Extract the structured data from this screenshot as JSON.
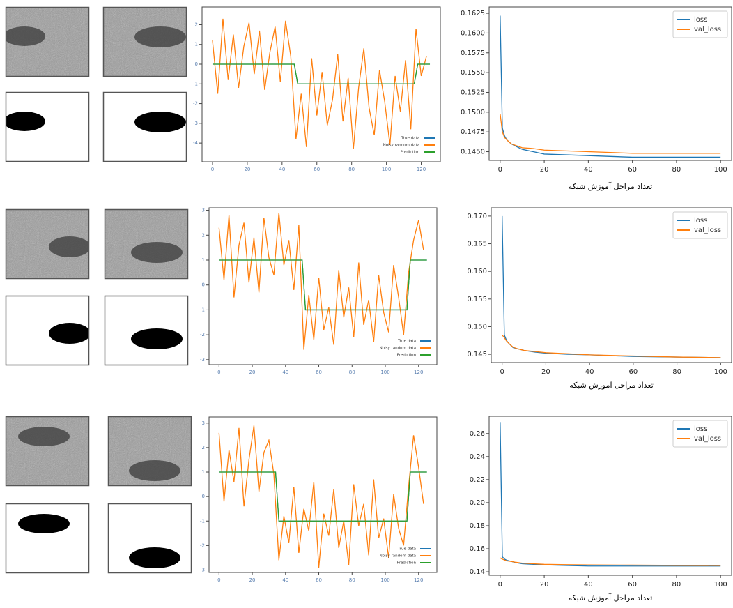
{
  "chart_data": [
    {
      "type": "line",
      "legend": "lower right",
      "xlim": [
        -6,
        131
      ],
      "ylim": [
        -4.95,
        2.9
      ],
      "xticks": [
        0,
        20,
        40,
        60,
        80,
        100,
        120
      ],
      "yticks": [
        2,
        1,
        0,
        -1,
        -2,
        -3,
        -4
      ],
      "series": [
        {
          "name": "True data",
          "color": "#1f77b4",
          "x": [
            0,
            47,
            49,
            116,
            118,
            125
          ],
          "values": [
            0,
            0,
            -1,
            -1,
            0,
            0
          ]
        },
        {
          "name": "Noisy random data",
          "color": "#ff7f0e",
          "x": [
            0,
            3,
            6,
            9,
            12,
            15,
            18,
            21,
            24,
            27,
            30,
            33,
            36,
            39,
            42,
            45,
            48,
            51,
            54,
            57,
            60,
            63,
            66,
            69,
            72,
            75,
            78,
            81,
            84,
            87,
            90,
            93,
            96,
            99,
            102,
            105,
            108,
            111,
            114,
            117,
            120,
            123
          ],
          "values": [
            1.2,
            -1.5,
            2.3,
            -0.8,
            1.5,
            -1.2,
            0.9,
            2.1,
            -0.5,
            1.7,
            -1.3,
            0.6,
            1.9,
            -0.9,
            2.2,
            0.4,
            -3.8,
            -1.5,
            -4.2,
            0.3,
            -2.6,
            -0.4,
            -3.1,
            -1.8,
            0.5,
            -2.9,
            -0.7,
            -4.3,
            -1.2,
            0.8,
            -2.2,
            -3.6,
            -0.3,
            -1.9,
            -4.1,
            -0.6,
            -2.4,
            0.2,
            -3.3,
            1.8,
            -0.6,
            0.4
          ]
        },
        {
          "name": "Prediction",
          "color": "#2ca02c",
          "x": [
            0,
            47,
            49,
            116,
            118,
            125
          ],
          "values": [
            0,
            0,
            -1,
            -1,
            0,
            0
          ]
        }
      ]
    },
    {
      "type": "line",
      "legend": "upper right",
      "x_label": "تعداد مراحل آموزش شبکه",
      "xlim": [
        -5,
        105
      ],
      "ylim": [
        0.1439,
        0.1633
      ],
      "xticks": [
        0,
        20,
        40,
        60,
        80,
        100
      ],
      "yticks": [
        {
          "value": 0.145,
          "label": "0.1450"
        },
        0.1475,
        {
          "value": 0.15,
          "label": "0.1500"
        },
        0.1525,
        {
          "value": 0.155,
          "label": "0.1550"
        },
        0.1575,
        {
          "value": 0.16,
          "label": "0.1600"
        },
        0.1625
      ],
      "x": [
        0,
        1,
        2,
        3,
        5,
        7,
        10,
        15,
        20,
        30,
        40,
        60,
        80,
        100
      ],
      "series": [
        {
          "name": "loss",
          "color": "#1f77b4",
          "values": [
            0.1622,
            0.148,
            0.147,
            0.1465,
            0.146,
            0.1457,
            0.1453,
            0.145,
            0.1447,
            0.1446,
            0.1445,
            0.1443,
            0.1443,
            0.1443
          ]
        },
        {
          "name": "val_loss",
          "color": "#ff7f0e",
          "values": [
            0.1498,
            0.1475,
            0.1468,
            0.1465,
            0.146,
            0.1458,
            0.1455,
            0.1454,
            0.1452,
            0.1451,
            0.145,
            0.1448,
            0.1448,
            0.1448
          ]
        }
      ]
    },
    {
      "type": "line",
      "legend": "lower right",
      "xlim": [
        -6,
        131
      ],
      "ylim": [
        -3.2,
        3.1
      ],
      "xticks": [
        0,
        20,
        40,
        60,
        80,
        100,
        120
      ],
      "yticks": [
        3,
        2,
        1,
        0,
        -1,
        -2,
        -3
      ],
      "series": [
        {
          "name": "True data",
          "color": "#1f77b4",
          "x": [
            0,
            50,
            52,
            113,
            115,
            125
          ],
          "values": [
            1,
            1,
            -1,
            -1,
            1,
            1
          ]
        },
        {
          "name": "Noisy random data",
          "color": "#ff7f0e",
          "x": [
            0,
            3,
            6,
            9,
            12,
            15,
            18,
            21,
            24,
            27,
            30,
            33,
            36,
            39,
            42,
            45,
            48,
            51,
            54,
            57,
            60,
            63,
            66,
            69,
            72,
            75,
            78,
            81,
            84,
            87,
            90,
            93,
            96,
            99,
            102,
            105,
            108,
            111,
            114,
            117,
            120,
            123
          ],
          "values": [
            2.3,
            0.2,
            2.8,
            -0.5,
            1.6,
            2.5,
            0.1,
            1.9,
            -0.3,
            2.7,
            1.1,
            0.4,
            2.9,
            0.8,
            1.8,
            -0.2,
            2.4,
            -2.6,
            -0.4,
            -2.2,
            0.3,
            -1.8,
            -0.9,
            -2.4,
            0.6,
            -1.3,
            -0.1,
            -2.1,
            0.9,
            -1.6,
            -0.6,
            -2.3,
            0.4,
            -1.1,
            -1.9,
            0.8,
            -0.5,
            -2.0,
            0.5,
            1.8,
            2.6,
            1.4
          ]
        },
        {
          "name": "Prediction",
          "color": "#2ca02c",
          "x": [
            0,
            50,
            52,
            113,
            115,
            125
          ],
          "values": [
            1,
            1,
            -1,
            -1,
            1,
            1
          ]
        }
      ]
    },
    {
      "type": "line",
      "legend": "upper right",
      "x_label": "تعداد مراحل آموزش شبکه",
      "xlim": [
        -5,
        105
      ],
      "ylim": [
        0.1435,
        0.1715
      ],
      "xticks": [
        0,
        20,
        40,
        60,
        80,
        100
      ],
      "yticks": [
        0.145,
        {
          "value": 0.15,
          "label": "0.150"
        },
        0.155,
        {
          "value": 0.16,
          "label": "0.160"
        },
        0.165,
        {
          "value": 0.17,
          "label": "0.170"
        }
      ],
      "x": [
        0,
        1,
        2,
        3,
        5,
        7,
        10,
        15,
        20,
        30,
        40,
        60,
        80,
        100
      ],
      "series": [
        {
          "name": "loss",
          "color": "#1f77b4",
          "values": [
            0.17,
            0.1485,
            0.1475,
            0.147,
            0.1462,
            0.146,
            0.1457,
            0.1454,
            0.1452,
            0.145,
            0.1449,
            0.1446,
            0.1445,
            0.1444
          ]
        },
        {
          "name": "val_loss",
          "color": "#ff7f0e",
          "values": [
            0.1485,
            0.148,
            0.1474,
            0.147,
            0.1463,
            0.146,
            0.1457,
            0.1455,
            0.1453,
            0.1451,
            0.1449,
            0.1447,
            0.1445,
            0.1444
          ]
        }
      ]
    },
    {
      "type": "line",
      "legend": "lower right",
      "xlim": [
        -6,
        131
      ],
      "ylim": [
        -3.1,
        3.25
      ],
      "xticks": [
        0,
        20,
        40,
        60,
        80,
        100,
        120
      ],
      "yticks": [
        3,
        2,
        1,
        0,
        -1,
        -2,
        -3
      ],
      "series": [
        {
          "name": "True data",
          "color": "#1f77b4",
          "x": [
            0,
            34,
            36,
            113,
            115,
            125
          ],
          "values": [
            1,
            1,
            -1,
            -1,
            1,
            1
          ]
        },
        {
          "name": "Noisy random data",
          "color": "#ff7f0e",
          "x": [
            0,
            3,
            6,
            9,
            12,
            15,
            18,
            21,
            24,
            27,
            30,
            33,
            36,
            39,
            42,
            45,
            48,
            51,
            54,
            57,
            60,
            63,
            66,
            69,
            72,
            75,
            78,
            81,
            84,
            87,
            90,
            93,
            96,
            99,
            102,
            105,
            108,
            111,
            114,
            117,
            120,
            123
          ],
          "values": [
            2.6,
            -0.2,
            1.9,
            0.6,
            2.8,
            -0.4,
            1.5,
            2.9,
            0.2,
            1.8,
            2.3,
            0.9,
            -2.6,
            -0.8,
            -1.9,
            0.4,
            -2.3,
            -0.5,
            -1.4,
            0.6,
            -2.9,
            -0.7,
            -1.6,
            0.3,
            -2.1,
            -1.0,
            -2.8,
            0.5,
            -1.2,
            -0.3,
            -2.4,
            0.7,
            -1.7,
            -0.9,
            -2.5,
            0.1,
            -1.3,
            -2.0,
            0.4,
            2.5,
            1.2,
            -0.3
          ]
        },
        {
          "name": "Prediction",
          "color": "#2ca02c",
          "x": [
            0,
            34,
            36,
            113,
            115,
            125
          ],
          "values": [
            1,
            1,
            -1,
            -1,
            1,
            1
          ]
        }
      ]
    },
    {
      "type": "line",
      "legend": "upper right",
      "x_label": "تعداد مراحل آموزش شبکه",
      "xlim": [
        -5,
        105
      ],
      "ylim": [
        0.137,
        0.275
      ],
      "xticks": [
        0,
        20,
        40,
        60,
        80,
        100
      ],
      "yticks": [
        0.14,
        0.16,
        0.18,
        {
          "value": 0.2,
          "label": "0.20"
        },
        0.22,
        0.24,
        0.26
      ],
      "x": [
        0,
        1,
        2,
        3,
        5,
        7,
        10,
        15,
        20,
        30,
        40,
        60,
        80,
        100
      ],
      "series": [
        {
          "name": "loss",
          "color": "#1f77b4",
          "values": [
            0.27,
            0.153,
            0.151,
            0.15,
            0.149,
            0.148,
            0.147,
            0.1465,
            0.146,
            0.1455,
            0.145,
            0.145,
            0.145,
            0.145
          ]
        },
        {
          "name": "val_loss",
          "color": "#ff7f0e",
          "values": [
            0.152,
            0.151,
            0.1502,
            0.1495,
            0.149,
            0.1483,
            0.1475,
            0.147,
            0.1465,
            0.1462,
            0.146,
            0.1458,
            0.1456,
            0.1455
          ]
        }
      ]
    }
  ]
}
